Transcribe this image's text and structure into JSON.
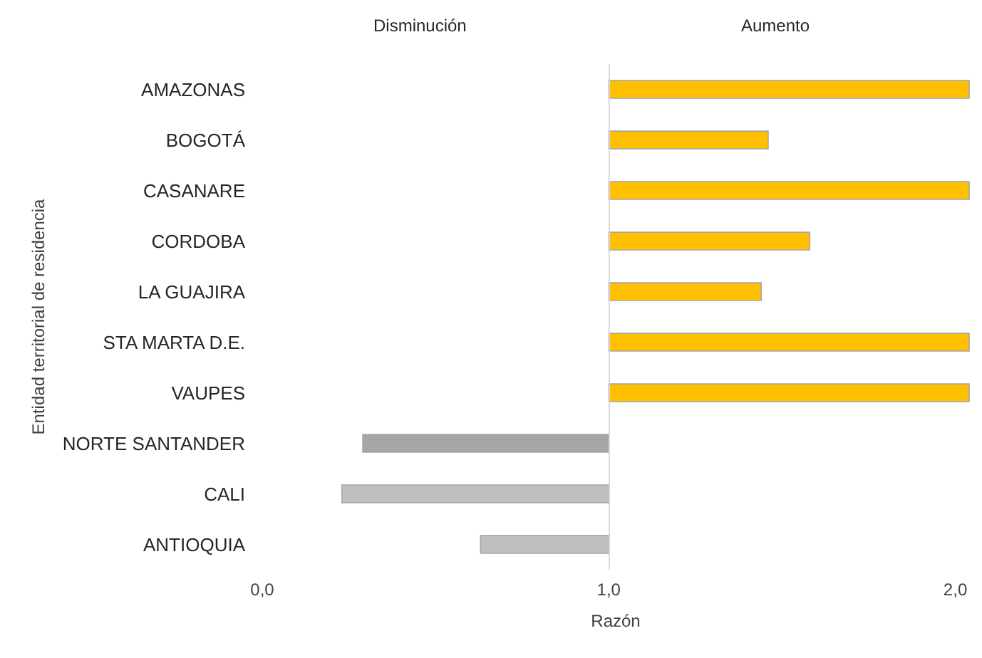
{
  "chart_data": {
    "type": "bar",
    "orientation": "horizontal",
    "xlabel": "Razón",
    "ylabel": "Entidad territorial de residencia",
    "annotations": [
      "Disminución",
      "Aumento"
    ],
    "categories": [
      "AMAZONAS",
      "BOGOTÁ",
      "CASANARE",
      "CORDOBA",
      "LA GUAJIRA",
      "STA MARTA D.E.",
      "VAUPES",
      "NORTE SANTANDER",
      "CALI",
      "ANTIOQUIA"
    ],
    "base": [
      1,
      1,
      1,
      1,
      1,
      1,
      1,
      1,
      1,
      1
    ],
    "values": [
      1.04,
      0.46,
      1.04,
      0.58,
      0.44,
      1.04,
      1.04,
      -0.71,
      -0.77,
      -0.37
    ],
    "colors": [
      "#ffc000",
      "#ffc000",
      "#ffc000",
      "#ffc000",
      "#ffc000",
      "#ffc000",
      "#ffc000",
      "#a6a6a6",
      "#bfbfbf",
      "#bfbfbf"
    ],
    "xlim": [
      0,
      2.04
    ],
    "xticks": [
      {
        "value": 0,
        "label": "0,0"
      },
      {
        "value": 1,
        "label": "1,0"
      },
      {
        "value": 2,
        "label": "2,0"
      }
    ],
    "ref_lines": [
      {
        "axis": "x",
        "value": 1,
        "color": "#d9d9d9"
      }
    ],
    "grid": false
  }
}
